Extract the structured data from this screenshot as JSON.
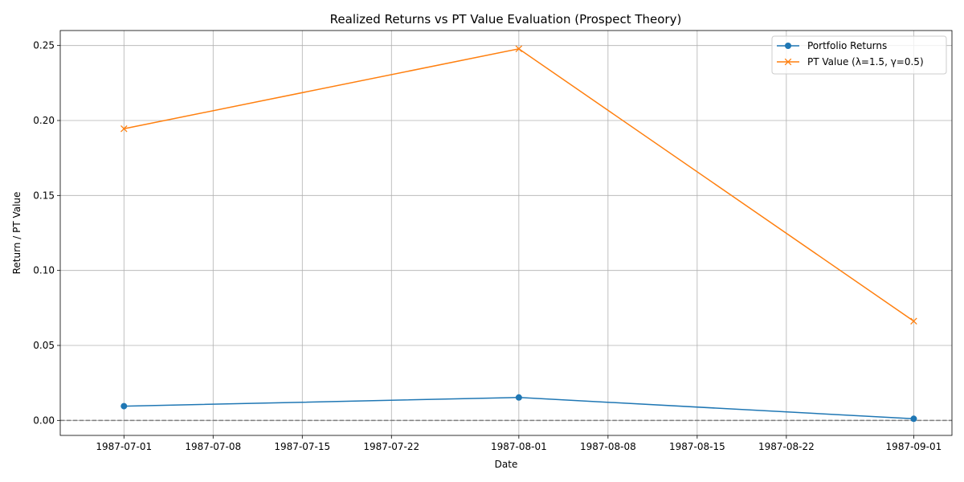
{
  "chart_data": {
    "type": "line",
    "title": "Realized Returns vs PT Value Evaluation (Prospect Theory)",
    "xlabel": "Date",
    "ylabel": "Return / PT Value",
    "xlim": [
      "1986-06-26",
      "1987-09-04"
    ],
    "x_axis_start": "1987-06-26",
    "ylim": [
      -0.01,
      0.26
    ],
    "x_ticks": [
      "1987-07-01",
      "1987-07-08",
      "1987-07-15",
      "1987-07-22",
      "1987-08-01",
      "1987-08-08",
      "1987-08-15",
      "1987-08-22",
      "1987-09-01"
    ],
    "y_ticks": [
      "0.00",
      "0.05",
      "0.10",
      "0.15",
      "0.20",
      "0.25"
    ],
    "grid": true,
    "legend_position": "top-right",
    "reference_line": {
      "y": 0,
      "style": "dashed",
      "color": "#808080"
    },
    "series": [
      {
        "name": "Portfolio Returns",
        "color": "#1f77b4",
        "marker": "circle",
        "x": [
          "1987-07-01",
          "1987-08-01",
          "1987-09-01"
        ],
        "values": [
          0.0095,
          0.0153,
          0.0011
        ]
      },
      {
        "name": "PT Value (λ=1.5, γ=0.5)",
        "color": "#ff7f0e",
        "marker": "x",
        "x": [
          "1987-07-01",
          "1987-08-01",
          "1987-09-01"
        ],
        "values": [
          0.1945,
          0.2478,
          0.0662
        ]
      }
    ]
  }
}
